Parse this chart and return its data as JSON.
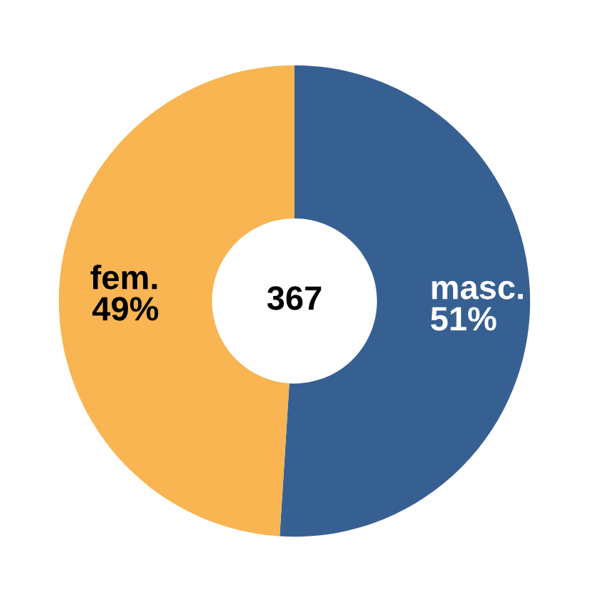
{
  "chart_data": {
    "type": "donut",
    "categories": [
      "masc.",
      "fem."
    ],
    "values": [
      51,
      49
    ],
    "value_labels": [
      "51%",
      "49%"
    ],
    "colors": [
      "#376092",
      "#f8b552"
    ],
    "annotations": [
      "367"
    ],
    "legend": false
  }
}
